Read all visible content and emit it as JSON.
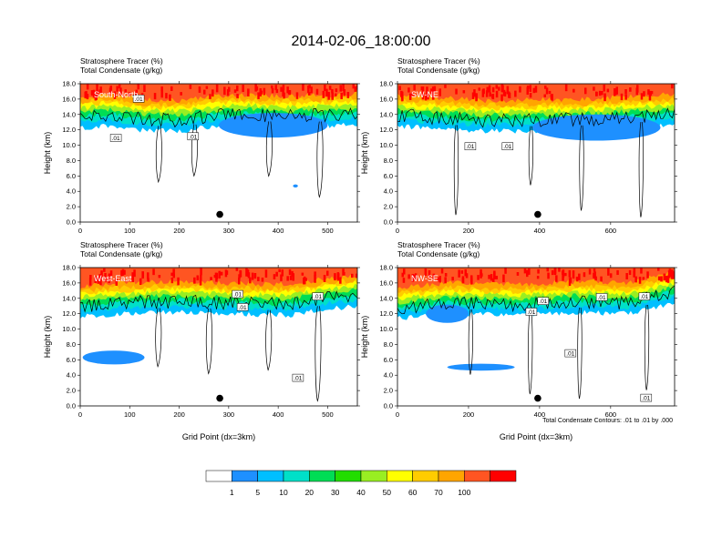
{
  "figure": {
    "title": "2014-02-06_18:00:00",
    "contour_note": "Total Condensate Contours: .01 to .01 by .000",
    "contour_label": ".01",
    "colors": {
      "tracer_levels": [
        "#ffffff",
        "#1e90ff",
        "#00bfff",
        "#00e0c8",
        "#00dd55",
        "#22dd00",
        "#99ee22",
        "#ffff00",
        "#ffcc00",
        "#ffa500",
        "#ff5522",
        "#ff0000"
      ],
      "contour": "#000000",
      "marker": "#000000"
    }
  },
  "chart_data": [
    {
      "type": "heatmap",
      "panel_label": "South-North",
      "title_lines": [
        "Stratosphere Tracer   (%)",
        "Total Condensate   (g/kg)"
      ],
      "ylabel": "Height (km)",
      "xlabel": "",
      "xlim": [
        0,
        560
      ],
      "ylim": [
        0,
        18
      ],
      "xticks": [
        0,
        100,
        200,
        300,
        400,
        500
      ],
      "yticks": [
        "0.0",
        "2.0",
        "4.0",
        "6.0",
        "8.0",
        "10.0",
        "12.0",
        "14.0",
        "16.0",
        "18.0"
      ],
      "tropopause_km_by_x": [
        [
          0,
          14.8
        ],
        [
          60,
          15.2
        ],
        [
          120,
          14.6
        ],
        [
          200,
          14.4
        ],
        [
          260,
          15.0
        ],
        [
          340,
          15.2
        ],
        [
          420,
          15.0
        ],
        [
          500,
          15.1
        ],
        [
          560,
          15.3
        ]
      ],
      "cloud_patches": [
        {
          "x": [
            280,
            500
          ],
          "y": [
            11.0,
            14.2
          ],
          "level": 1
        },
        {
          "x": [
            430,
            440
          ],
          "y": [
            4.5,
            4.9
          ],
          "level": 1
        }
      ],
      "marker": {
        "x": 282,
        "y": 1.0
      },
      "contour_label_positions": [
        [
          72,
          10.9
        ],
        [
          228,
          11.1
        ],
        [
          118,
          16.0
        ]
      ]
    },
    {
      "type": "heatmap",
      "panel_label": "SW-NE",
      "title_lines": [
        "Stratosphere Tracer   (%)",
        "Total Condensate   (g/kg)"
      ],
      "ylabel": "Height (km)",
      "xlabel": "",
      "xlim": [
        0,
        780
      ],
      "ylim": [
        0,
        18
      ],
      "xticks": [
        0,
        200,
        400,
        600
      ],
      "yticks": [
        "0.0",
        "2.0",
        "4.0",
        "6.0",
        "8.0",
        "10.0",
        "12.0",
        "14.0",
        "16.0",
        "18.0"
      ],
      "tropopause_km_by_x": [
        [
          0,
          15.1
        ],
        [
          100,
          14.8
        ],
        [
          250,
          14.4
        ],
        [
          400,
          14.5
        ],
        [
          550,
          14.6
        ],
        [
          680,
          15.0
        ],
        [
          780,
          15.2
        ]
      ],
      "cloud_patches": [
        {
          "x": [
            380,
            740
          ],
          "y": [
            10.6,
            14.0
          ],
          "level": 1
        }
      ],
      "marker": {
        "x": 395,
        "y": 1.0
      },
      "contour_label_positions": [
        [
          205,
          9.8
        ],
        [
          310,
          9.8
        ]
      ]
    },
    {
      "type": "heatmap",
      "panel_label": "West-East",
      "title_lines": [
        "Stratosphere Tracer   (%)",
        "Total Condensate   (g/kg)"
      ],
      "ylabel": "Height (km)",
      "xlabel": "Grid Point (dx=3km)",
      "xlim": [
        0,
        560
      ],
      "ylim": [
        0,
        18
      ],
      "xticks": [
        0,
        100,
        200,
        300,
        400,
        500
      ],
      "yticks": [
        "0.0",
        "2.0",
        "4.0",
        "6.0",
        "8.0",
        "10.0",
        "12.0",
        "14.0",
        "16.0",
        "18.0"
      ],
      "tropopause_km_by_x": [
        [
          0,
          14.2
        ],
        [
          80,
          14.6
        ],
        [
          200,
          14.8
        ],
        [
          300,
          14.6
        ],
        [
          420,
          14.4
        ],
        [
          500,
          15.2
        ],
        [
          560,
          15.6
        ]
      ],
      "cloud_patches": [
        {
          "x": [
            5,
            130
          ],
          "y": [
            5.4,
            7.2
          ],
          "level": 1
        }
      ],
      "marker": {
        "x": 282,
        "y": 1.0
      },
      "contour_label_positions": [
        [
          328,
          12.8
        ],
        [
          480,
          14.2
        ],
        [
          440,
          3.6
        ],
        [
          318,
          14.5
        ]
      ]
    },
    {
      "type": "heatmap",
      "panel_label": "NW-SE",
      "title_lines": [
        "Stratosphere Tracer   (%)",
        "Total Condensate   (g/kg)"
      ],
      "ylabel": "Height (km)",
      "xlabel": "Grid Point (dx=3km)",
      "xlim": [
        0,
        780
      ],
      "ylim": [
        0,
        18
      ],
      "xticks": [
        0,
        200,
        400,
        600
      ],
      "yticks": [
        "0.0",
        "2.0",
        "4.0",
        "6.0",
        "8.0",
        "10.0",
        "12.0",
        "14.0",
        "16.0",
        "18.0"
      ],
      "tropopause_km_by_x": [
        [
          0,
          14.0
        ],
        [
          150,
          14.6
        ],
        [
          350,
          14.4
        ],
        [
          500,
          14.8
        ],
        [
          650,
          14.6
        ],
        [
          780,
          16.0
        ]
      ],
      "cloud_patches": [
        {
          "x": [
            80,
            200
          ],
          "y": [
            10.8,
            13.2
          ],
          "level": 1
        },
        {
          "x": [
            140,
            330
          ],
          "y": [
            4.6,
            5.5
          ],
          "level": 1
        }
      ],
      "marker": {
        "x": 395,
        "y": 1.0
      },
      "contour_label_positions": [
        [
          410,
          13.6
        ],
        [
          575,
          14.1
        ],
        [
          695,
          14.2
        ],
        [
          487,
          6.8
        ],
        [
          377,
          12.2
        ],
        [
          700,
          1.0
        ]
      ]
    }
  ],
  "colorbar": {
    "labels": [
      "1",
      "5",
      "10",
      "20",
      "30",
      "40",
      "50",
      "60",
      "70",
      "100"
    ]
  }
}
